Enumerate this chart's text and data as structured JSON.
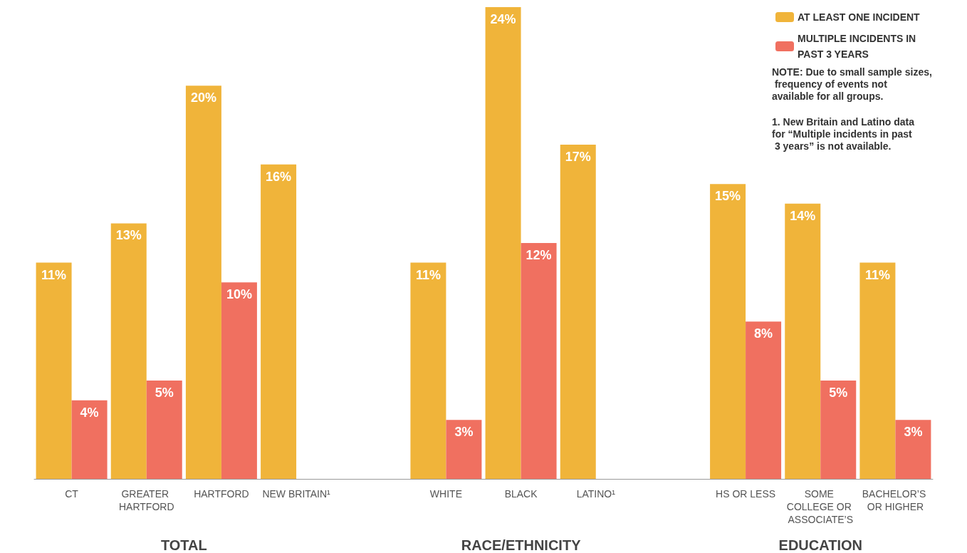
{
  "chart_data": {
    "type": "bar",
    "categories": [
      "CT",
      "GREATER HARTFORD",
      "HARTFORD",
      "NEW BRITAIN¹",
      null,
      "WHITE",
      "BLACK",
      "LATINO¹",
      null,
      "HS OR LESS",
      "SOME COLLEGE OR ASSOCIATE’S",
      "BACHELOR’S OR HIGHER"
    ],
    "series": [
      {
        "name": "AT LEAST ONE INCIDENT",
        "color": "#f0b43a",
        "values": [
          11,
          13,
          20,
          16,
          null,
          11,
          24,
          17,
          null,
          15,
          14,
          11
        ],
        "value_labels": [
          "11%",
          "13%",
          "20%",
          "16%",
          null,
          "11%",
          "24%",
          "17%",
          null,
          "15%",
          "14%",
          "11%"
        ]
      },
      {
        "name": "MULTIPLE INCIDENTS IN PAST 3 YEARS",
        "color": "#f07060",
        "values": [
          4,
          5,
          10,
          null,
          null,
          3,
          12,
          null,
          null,
          8,
          5,
          3
        ],
        "value_labels": [
          "4%",
          "5%",
          "10%",
          null,
          null,
          "3%",
          "12%",
          null,
          null,
          "8%",
          "5%",
          "3%"
        ]
      }
    ],
    "legend": "top right",
    "grid": false,
    "tick_labels": "x",
    "annotations": [
      "TOTAL",
      "RACE/ETHNICITY",
      "EDUCATION",
      "NOTE: Due to small sample sizes, frequency of events not available for all groups.",
      "1. New Britain and Latino data for “Multiple incidents in past 3 years” is not available."
    ]
  }
}
